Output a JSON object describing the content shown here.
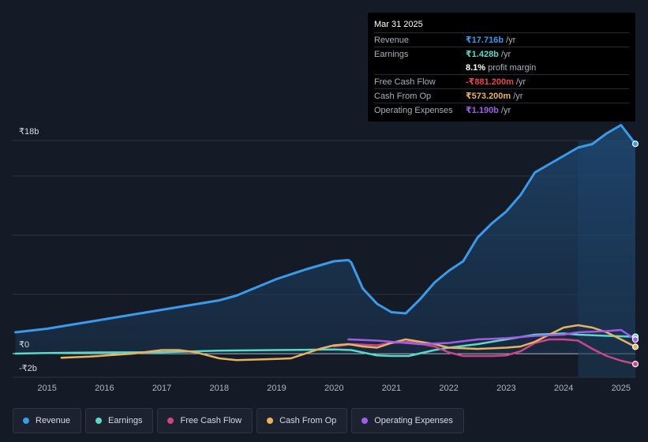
{
  "chart_data": {
    "type": "area",
    "y_axis_labels": {
      "top": "₹18b",
      "zero": "₹0",
      "bottom": "-₹2b"
    },
    "ylim": [
      -2,
      18
    ],
    "xlim": [
      2014.4,
      2025.25
    ],
    "x_ticks": [
      "2015",
      "2016",
      "2017",
      "2018",
      "2019",
      "2020",
      "2021",
      "2022",
      "2023",
      "2024",
      "2025"
    ],
    "forecast_start": 2024.25,
    "series": [
      {
        "name": "Revenue",
        "color": "#3b9ae9",
        "fill": true,
        "x": [
          2014.45,
          2015.0,
          2015.5,
          2016.0,
          2016.5,
          2017.0,
          2017.5,
          2018.0,
          2018.3,
          2018.6,
          2019.0,
          2019.5,
          2020.0,
          2020.25,
          2020.3,
          2020.5,
          2020.75,
          2021.0,
          2021.25,
          2021.5,
          2021.75,
          2022.0,
          2022.25,
          2022.5,
          2022.75,
          2023.0,
          2023.25,
          2023.5,
          2023.75,
          2024.0,
          2024.25,
          2024.5,
          2024.75,
          2025.0,
          2025.25
        ],
        "values": [
          1.8,
          2.1,
          2.5,
          2.9,
          3.3,
          3.7,
          4.1,
          4.5,
          4.9,
          5.5,
          6.3,
          7.1,
          7.8,
          7.9,
          7.7,
          5.5,
          4.2,
          3.5,
          3.4,
          4.6,
          6.0,
          7.0,
          7.8,
          9.8,
          11.0,
          12.0,
          13.4,
          15.3,
          16.0,
          16.7,
          17.4,
          17.7,
          18.6,
          19.3,
          17.716
        ]
      },
      {
        "name": "Earnings",
        "color": "#5ad8c8",
        "fill": false,
        "x": [
          2014.45,
          2015.0,
          2016.0,
          2017.0,
          2018.0,
          2019.0,
          2020.0,
          2020.3,
          2020.75,
          2021.0,
          2021.3,
          2021.75,
          2022.0,
          2022.5,
          2023.0,
          2023.5,
          2024.0,
          2024.25,
          2024.75,
          2025.25
        ],
        "values": [
          0.0,
          0.05,
          0.1,
          0.12,
          0.25,
          0.3,
          0.35,
          0.3,
          -0.15,
          -0.2,
          -0.2,
          0.3,
          0.5,
          0.8,
          1.2,
          1.6,
          1.7,
          1.6,
          1.5,
          1.428
        ]
      },
      {
        "name": "Free Cash Flow",
        "color": "#c9468a",
        "fill": false,
        "x": [
          2020.0,
          2020.3,
          2020.75,
          2021.0,
          2021.3,
          2021.75,
          2022.0,
          2022.25,
          2022.75,
          2023.0,
          2023.25,
          2023.5,
          2023.75,
          2024.0,
          2024.25,
          2024.5,
          2024.75,
          2025.0,
          2025.25
        ],
        "values": [
          0.6,
          0.8,
          0.7,
          0.9,
          1.0,
          0.6,
          0.1,
          -0.2,
          -0.2,
          -0.15,
          0.2,
          0.9,
          1.2,
          1.2,
          1.1,
          0.4,
          -0.2,
          -0.6,
          -0.881
        ]
      },
      {
        "name": "Cash From Op",
        "color": "#e8b361",
        "fill": false,
        "x": [
          2015.25,
          2015.75,
          2016.5,
          2017.0,
          2017.3,
          2017.6,
          2018.0,
          2018.3,
          2019.0,
          2019.25,
          2019.75,
          2020.0,
          2020.25,
          2020.5,
          2020.75,
          2021.0,
          2021.25,
          2021.75,
          2022.0,
          2022.5,
          2023.0,
          2023.25,
          2023.5,
          2024.0,
          2024.25,
          2024.5,
          2024.75,
          2025.0,
          2025.25
        ],
        "values": [
          -0.35,
          -0.25,
          0.0,
          0.3,
          0.3,
          0.1,
          -0.4,
          -0.55,
          -0.45,
          -0.4,
          0.4,
          0.7,
          0.8,
          0.6,
          0.5,
          0.9,
          1.2,
          0.8,
          0.5,
          0.4,
          0.5,
          0.6,
          1.0,
          2.2,
          2.4,
          2.2,
          1.8,
          1.2,
          0.573
        ]
      },
      {
        "name": "Operating Expenses",
        "color": "#a35ce8",
        "fill": false,
        "x": [
          2020.25,
          2020.75,
          2021.0,
          2021.5,
          2022.0,
          2022.5,
          2023.0,
          2023.5,
          2024.0,
          2024.25,
          2024.75,
          2025.0,
          2025.25
        ],
        "values": [
          1.2,
          1.1,
          1.0,
          0.8,
          0.9,
          1.2,
          1.3,
          1.5,
          1.6,
          1.8,
          1.9,
          2.0,
          1.19
        ]
      }
    ]
  },
  "tooltip": {
    "date": "Mar 31 2025",
    "rows": [
      {
        "label": "Revenue",
        "value": "₹17.716b",
        "unit": "/yr",
        "color": "#3b9ae9"
      },
      {
        "label": "Earnings",
        "value": "₹1.428b",
        "unit": "/yr",
        "color": "#5ad8c8"
      },
      {
        "label": "",
        "value": "8.1%",
        "unit": "profit margin",
        "color": "#ffffff"
      },
      {
        "label": "Free Cash Flow",
        "value": "-₹881.200m",
        "unit": "/yr",
        "color": "#e5484d"
      },
      {
        "label": "Cash From Op",
        "value": "₹573.200m",
        "unit": "/yr",
        "color": "#e8b361"
      },
      {
        "label": "Operating Expenses",
        "value": "₹1.190b",
        "unit": "/yr",
        "color": "#a35ce8"
      }
    ]
  },
  "legend": [
    {
      "label": "Revenue",
      "color": "#3b9ae9"
    },
    {
      "label": "Earnings",
      "color": "#5ad8c8"
    },
    {
      "label": "Free Cash Flow",
      "color": "#c9468a"
    },
    {
      "label": "Cash From Op",
      "color": "#e8b361"
    },
    {
      "label": "Operating Expenses",
      "color": "#a35ce8"
    }
  ]
}
